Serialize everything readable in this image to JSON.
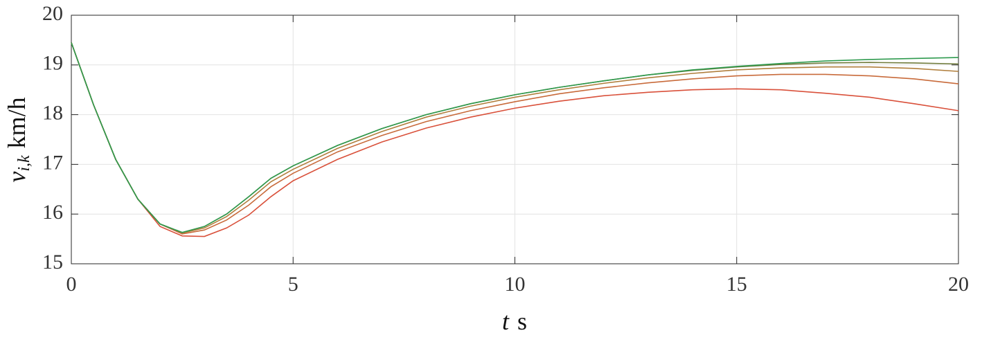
{
  "chart_data": {
    "type": "line",
    "xlabel": {
      "symbol": "t",
      "unit": "s"
    },
    "ylabel": {
      "symbol": "v",
      "subscript": "i,k",
      "unit": "km/h"
    },
    "x": [
      0,
      0.5,
      1,
      1.5,
      2,
      2.5,
      3,
      3.5,
      4,
      4.5,
      5,
      6,
      7,
      8,
      9,
      10,
      11,
      12,
      13,
      14,
      15,
      16,
      17,
      18,
      19,
      20
    ],
    "series": [
      {
        "color": "#d9503a",
        "values": [
          19.45,
          18.2,
          17.1,
          16.3,
          15.75,
          15.56,
          15.55,
          15.72,
          15.98,
          16.35,
          16.67,
          17.1,
          17.45,
          17.73,
          17.95,
          18.13,
          18.27,
          18.38,
          18.45,
          18.5,
          18.52,
          18.5,
          18.43,
          18.35,
          18.22,
          18.08
        ]
      },
      {
        "color": "#c86a3a",
        "values": [
          19.45,
          18.2,
          17.1,
          16.3,
          15.8,
          15.6,
          15.68,
          15.88,
          16.18,
          16.55,
          16.82,
          17.25,
          17.58,
          17.86,
          18.08,
          18.26,
          18.42,
          18.54,
          18.64,
          18.72,
          18.78,
          18.81,
          18.81,
          18.78,
          18.72,
          18.62
        ]
      },
      {
        "color": "#b07e3c",
        "values": [
          19.45,
          18.2,
          17.1,
          16.3,
          15.8,
          15.62,
          15.72,
          15.95,
          16.28,
          16.65,
          16.9,
          17.32,
          17.66,
          17.95,
          18.17,
          18.35,
          18.5,
          18.63,
          18.74,
          18.83,
          18.9,
          18.94,
          18.96,
          18.96,
          18.93,
          18.87
        ]
      },
      {
        "color": "#6e7a3a",
        "values": [
          19.45,
          18.2,
          17.1,
          16.3,
          15.8,
          15.63,
          15.75,
          16.0,
          16.35,
          16.72,
          16.97,
          17.38,
          17.72,
          18.0,
          18.22,
          18.4,
          18.55,
          18.68,
          18.8,
          18.89,
          18.96,
          19.01,
          19.04,
          19.05,
          19.04,
          19.02
        ]
      },
      {
        "color": "#2e9a4e",
        "values": [
          19.45,
          18.2,
          17.1,
          16.3,
          15.8,
          15.63,
          15.75,
          16.0,
          16.35,
          16.72,
          16.97,
          17.38,
          17.72,
          18.0,
          18.22,
          18.4,
          18.55,
          18.68,
          18.8,
          18.9,
          18.97,
          19.03,
          19.08,
          19.11,
          19.13,
          19.15
        ]
      }
    ],
    "xlim": [
      0,
      20
    ],
    "xticks": [
      0,
      5,
      10,
      15,
      20
    ],
    "ylim": [
      15,
      20
    ],
    "yticks": [
      15,
      16,
      17,
      18,
      19,
      20
    ],
    "grid": true
  }
}
